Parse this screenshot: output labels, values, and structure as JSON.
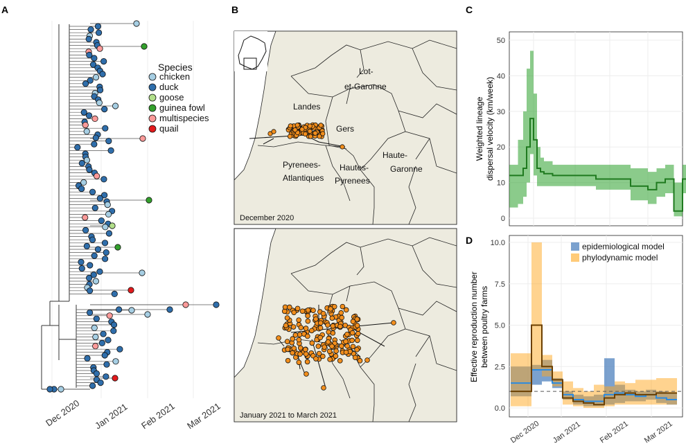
{
  "panels": {
    "a": "A",
    "b": "B",
    "c": "C",
    "d": "D"
  },
  "tree": {
    "legend_title": "Species",
    "legend": [
      {
        "label": "chicken",
        "color": "#a6cee3"
      },
      {
        "label": "duck",
        "color": "#2f6eab"
      },
      {
        "label": "goose",
        "color": "#b2df8a"
      },
      {
        "label": "guinea fowl",
        "color": "#33a02c"
      },
      {
        "label": "multispecies",
        "color": "#fb9a99"
      },
      {
        "label": "quail",
        "color": "#e31a1c"
      }
    ],
    "x_ticks": [
      "Dec 2020",
      "Jan 2021",
      "Feb 2021",
      "Mar 2021"
    ]
  },
  "maps": {
    "top_caption": "December 2020",
    "bottom_caption": "January 2021 to March 2021",
    "labels": [
      {
        "key": "lot1",
        "text": "Lot-"
      },
      {
        "key": "lot2",
        "text": "et-Garonne"
      },
      {
        "key": "landes",
        "text": "Landes"
      },
      {
        "key": "gers",
        "text": "Gers"
      },
      {
        "key": "hg1",
        "text": "Haute-"
      },
      {
        "key": "hg2",
        "text": "Garonne"
      },
      {
        "key": "pa1",
        "text": "Pyrenees-"
      },
      {
        "key": "pa2",
        "text": "Atlantiques"
      },
      {
        "key": "hp1",
        "text": "Hautes-"
      },
      {
        "key": "hp2",
        "text": "Pyrenees"
      }
    ],
    "colors": {
      "land": "#edebdf",
      "node": "#f28e1c"
    }
  },
  "chart_data": [
    {
      "type": "line",
      "panel": "C",
      "title": "",
      "ylabel": "Weighted lineage dispersal velocity (km/week)",
      "ylabel_lines": [
        "Weighted lineage",
        "dispersal velocity (km/week)"
      ],
      "ylim": [
        0,
        50
      ],
      "yticks": [
        0,
        10,
        20,
        30,
        40,
        50
      ],
      "x": [
        0,
        5,
        8,
        10,
        12,
        14,
        16,
        18,
        20,
        25,
        30,
        40,
        50,
        60,
        70,
        80,
        85,
        90,
        95,
        100
      ],
      "series": [
        {
          "name": "mean",
          "values": [
            12,
            12,
            14,
            20,
            28,
            22,
            14,
            13,
            12.5,
            12,
            12,
            12,
            11,
            11,
            9,
            8,
            10,
            11,
            2,
            11
          ]
        }
      ],
      "band_upper": [
        15,
        22,
        30,
        42,
        47,
        35,
        20,
        17,
        16,
        15,
        15,
        15,
        15,
        15,
        14,
        13,
        14,
        15,
        10,
        15
      ],
      "band_lower": [
        3,
        4,
        6,
        10,
        18,
        12,
        9,
        9,
        9,
        9,
        9,
        9,
        8,
        8,
        5,
        4,
        6,
        7,
        0.5,
        7
      ],
      "color": "#2ca02c"
    },
    {
      "type": "line",
      "panel": "D",
      "ylabel": "Effective reproduction number between poultry farms",
      "ylabel_lines": [
        "Effective reproduction number",
        "between poultry farms"
      ],
      "ylim": [
        0,
        10
      ],
      "yticks": [
        0.0,
        2.5,
        5.0,
        7.5,
        10.0
      ],
      "ytick_labels": [
        "0.0",
        "2.5",
        "5.0",
        "7.5",
        "10.0"
      ],
      "x_ticks": [
        "Dec 2020",
        "Jan 2021",
        "Feb 2021",
        "Mar 2021"
      ],
      "reference_line": 1,
      "series": [
        {
          "name": "epidemiological model",
          "color": "#4f81bd",
          "steps": [
            1.5,
            1.5,
            2.3,
            2.3,
            1.5,
            0.8,
            0.5,
            0.4,
            0.4,
            0.8,
            0.9,
            0.8,
            0.7,
            0.8,
            0.6,
            0.5
          ],
          "upper": [
            2.5,
            2.5,
            2.6,
            2.9,
            1.8,
            1.0,
            0.8,
            0.7,
            0.8,
            3.0,
            1.4,
            1.1,
            1.0,
            1.1,
            1.0,
            0.9
          ],
          "lower": [
            0.7,
            0.7,
            1.4,
            1.6,
            1.2,
            0.5,
            0.2,
            0.1,
            0.1,
            0.2,
            0.3,
            0.4,
            0.4,
            0.5,
            0.3,
            0.2
          ]
        },
        {
          "name": "phylodynamic model",
          "color": "#ffa81f",
          "steps": [
            1.0,
            1.0,
            5.0,
            2.5,
            1.7,
            0.6,
            0.4,
            0.3,
            0.2,
            0.6,
            0.8,
            0.9,
            0.8,
            0.8,
            0.9,
            0.9
          ],
          "upper": [
            3.3,
            3.3,
            10.0,
            3.2,
            2.2,
            1.6,
            1.2,
            1.0,
            1.4,
            1.3,
            1.6,
            1.5,
            1.7,
            1.7,
            1.8,
            1.8
          ],
          "lower": [
            0.1,
            0.1,
            2.3,
            1.9,
            1.3,
            0.2,
            0.1,
            0.0,
            0.0,
            0.1,
            0.2,
            0.2,
            0.2,
            0.2,
            0.2,
            0.2
          ]
        }
      ]
    }
  ]
}
